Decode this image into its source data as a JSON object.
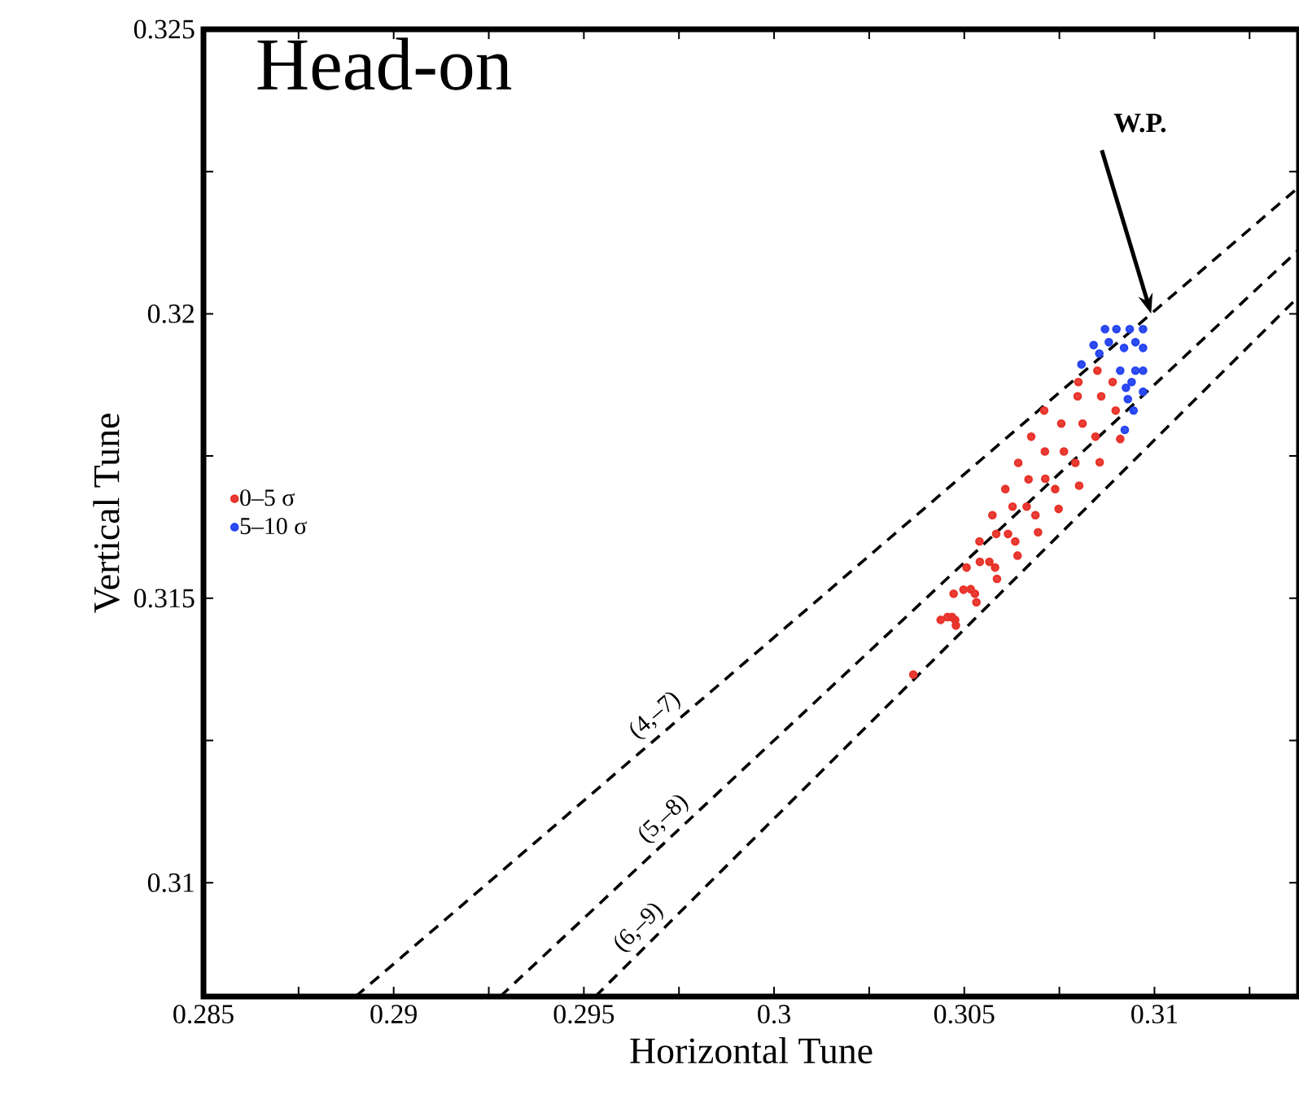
{
  "chart_data": {
    "type": "scatter",
    "title": "Head-on",
    "xlabel": "Horizontal Tune",
    "ylabel": "Vertical Tune",
    "xlim": [
      0.285,
      0.3138
    ],
    "ylim": [
      0.308,
      0.325
    ],
    "xticks": [
      0.285,
      {
        "value": 0.2875,
        "label": null
      },
      0.29,
      {
        "value": 0.2925,
        "label": null
      },
      0.295,
      {
        "value": 0.2975,
        "label": null
      },
      0.3,
      {
        "value": 0.3025,
        "label": null
      },
      0.305,
      {
        "value": 0.3075,
        "label": null
      },
      0.31,
      {
        "value": 0.3125,
        "label": null
      }
    ],
    "yticks": [
      0.31,
      {
        "value": 0.3125,
        "label": null
      },
      0.315,
      {
        "value": 0.3175,
        "label": null
      },
      0.32,
      {
        "value": 0.3225,
        "label": null
      },
      0.325
    ],
    "grid": false,
    "legend": "left",
    "series": [
      {
        "name": "0–5 σ",
        "color": "#e8332a",
        "marker": "circle",
        "x": [
          0.30366,
          0.30438,
          0.30456,
          0.30468,
          0.30476,
          0.30478,
          0.30472,
          0.30498,
          0.30517,
          0.30528,
          0.30532,
          0.30506,
          0.30541,
          0.30566,
          0.30581,
          0.30586,
          0.3054,
          0.30584,
          0.30615,
          0.30634,
          0.3064,
          0.30574,
          0.30627,
          0.30664,
          0.30687,
          0.30694,
          0.30608,
          0.30669,
          0.30713,
          0.30739,
          0.30748,
          0.30642,
          0.30712,
          0.30762,
          0.30792,
          0.30802,
          0.30676,
          0.30755,
          0.30811,
          0.30845,
          0.30856,
          0.3071,
          0.30798,
          0.3086,
          0.30898,
          0.3091,
          0.308,
          0.3085,
          0.3089
        ],
        "values": [
          0.31366,
          0.31462,
          0.31467,
          0.31467,
          0.31462,
          0.31452,
          0.31508,
          0.31515,
          0.31516,
          0.31508,
          0.31493,
          0.31554,
          0.31564,
          0.31564,
          0.31554,
          0.31534,
          0.316,
          0.31613,
          0.31613,
          0.316,
          0.31575,
          0.31646,
          0.31661,
          0.31661,
          0.31646,
          0.31616,
          0.31692,
          0.31709,
          0.3171,
          0.31692,
          0.31657,
          0.31738,
          0.31758,
          0.31758,
          0.31738,
          0.31698,
          0.31784,
          0.31807,
          0.31807,
          0.31784,
          0.31739,
          0.3183,
          0.31855,
          0.31855,
          0.3183,
          0.3178,
          0.3188,
          0.319,
          0.3188
        ]
      },
      {
        "name": "5–10 σ",
        "color": "#2645f0",
        "marker": "circle",
        "x": [
          0.30808,
          0.3084,
          0.3087,
          0.309,
          0.30935,
          0.3097,
          0.3097,
          0.3097,
          0.3097,
          0.30945,
          0.30922,
          0.3093,
          0.3095,
          0.3092,
          0.3088,
          0.3094,
          0.3091,
          0.3095,
          0.30925,
          0.30855
        ],
        "values": [
          0.31911,
          0.31945,
          0.31973,
          0.31973,
          0.31973,
          0.31973,
          0.3194,
          0.319,
          0.31863,
          0.3183,
          0.31796,
          0.3185,
          0.319,
          0.3194,
          0.3195,
          0.3188,
          0.319,
          0.3195,
          0.3187,
          0.3193
        ]
      },
      {
        "name": "(4,–7)",
        "type": "line",
        "marker": "none",
        "line_style": "dashed",
        "color": "#000000",
        "x": [
          0.289,
          0.3138
        ],
        "values": [
          0.308,
          0.32223
        ]
      },
      {
        "name": "(5,–8)",
        "type": "line",
        "marker": "none",
        "line_style": "dashed",
        "color": "#000000",
        "x": [
          0.2928,
          0.3138
        ],
        "values": [
          0.308,
          0.32113
        ]
      },
      {
        "name": "(6,–9)",
        "type": "line",
        "marker": "none",
        "line_style": "dashed",
        "color": "#000000",
        "x": [
          0.2953,
          0.3138
        ],
        "values": [
          0.308,
          0.32031
        ]
      }
    ],
    "annotations": [
      "W.P."
    ]
  }
}
